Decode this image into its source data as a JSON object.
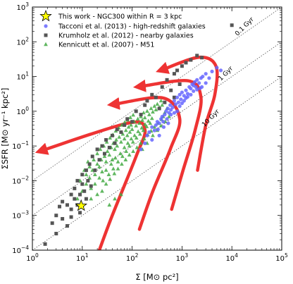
{
  "chart_data": {
    "type": "scatter",
    "x_scale": "log",
    "y_scale": "log",
    "xlim": [
      1,
      100000
    ],
    "ylim": [
      0.0001,
      1000
    ],
    "xlabel": "Σ [M⊙ pc²]",
    "ylabel": "ΣSFR [M⊙ yr⁻¹ kpc²]",
    "x_ticks": [
      {
        "value": 1,
        "base": "10",
        "exp": "0"
      },
      {
        "value": 10,
        "base": "10",
        "exp": "1"
      },
      {
        "value": 100,
        "base": "10",
        "exp": "2"
      },
      {
        "value": 1000,
        "base": "10",
        "exp": "3"
      },
      {
        "value": 10000,
        "base": "10",
        "exp": "4"
      },
      {
        "value": 100000,
        "base": "10",
        "exp": "5"
      }
    ],
    "y_ticks": [
      {
        "value": 0.0001,
        "base": "10",
        "exp": "−4"
      },
      {
        "value": 0.001,
        "base": "10",
        "exp": "−3"
      },
      {
        "value": 0.01,
        "base": "10",
        "exp": "−2"
      },
      {
        "value": 0.1,
        "base": "10",
        "exp": "−1"
      },
      {
        "value": 1,
        "base": "10",
        "exp": "0"
      },
      {
        "value": 10,
        "base": "10",
        "exp": "1"
      },
      {
        "value": 100,
        "base": "10",
        "exp": "2"
      },
      {
        "value": 1000,
        "base": "10",
        "exp": "3"
      }
    ],
    "legend": {
      "position": "upper-left",
      "entries": [
        {
          "label": "This work - NGC300 within R = 3 kpc",
          "marker": "star",
          "color": "#ffff00"
        },
        {
          "label": "Tacconi et al. (2013) - high-redshift galaxies",
          "marker": "circle",
          "color": "#6666ff"
        },
        {
          "label": "Krumholz et al. (2012) - nearby galaxies",
          "marker": "square",
          "color": "#555555"
        },
        {
          "label": "Kennicutt et al. (2007) - M51",
          "marker": "triangle",
          "color": "#44aa44"
        }
      ]
    },
    "reference_lines": [
      {
        "label": "0.1 Gyr",
        "depletion_time_gyr": 0.1
      },
      {
        "label": "1 Gyr",
        "depletion_time_gyr": 1
      },
      {
        "label": "10 Gyr",
        "depletion_time_gyr": 10
      }
    ],
    "arrows": [
      {
        "color": "#ee3333",
        "points": [
          [
            22,
            0.0001
          ],
          [
            40,
            0.001
          ],
          [
            120,
            0.05
          ],
          [
            180,
            0.3
          ],
          [
            80,
            0.45
          ],
          [
            1.6,
            0.075
          ]
        ]
      },
      {
        "color": "#ee3333",
        "points": [
          [
            140,
            0.0004
          ],
          [
            260,
            0.005
          ],
          [
            580,
            0.08
          ],
          [
            900,
            0.6
          ],
          [
            420,
            2.4
          ],
          [
            45,
            1.6
          ]
        ]
      },
      {
        "color": "#ee3333",
        "points": [
          [
            620,
            0.0015
          ],
          [
            1050,
            0.02
          ],
          [
            1850,
            0.3
          ],
          [
            2400,
            2.5
          ],
          [
            1350,
            7.5
          ],
          [
            150,
            5.2
          ]
        ]
      },
      {
        "color": "#ee3333",
        "points": [
          [
            2050,
            0.02
          ],
          [
            3000,
            0.4
          ],
          [
            4550,
            3
          ],
          [
            4800,
            20
          ],
          [
            2200,
            36
          ],
          [
            420,
            16
          ]
        ]
      }
    ],
    "series": [
      {
        "name": "This work - NGC300 within R = 3 kpc",
        "marker": "star",
        "color": "#ffff00",
        "points": [
          [
            9.5,
            0.0019
          ]
        ]
      },
      {
        "name": "Tacconi et al. (2013) - high-redshift galaxies",
        "marker": "circle",
        "color": "#6666ff",
        "points": [
          [
            150,
            0.08
          ],
          [
            180,
            0.12
          ],
          [
            200,
            0.2
          ],
          [
            220,
            0.25
          ],
          [
            250,
            0.35
          ],
          [
            280,
            0.28
          ],
          [
            300,
            0.4
          ],
          [
            320,
            0.5
          ],
          [
            350,
            0.45
          ],
          [
            380,
            0.6
          ],
          [
            400,
            0.7
          ],
          [
            420,
            0.5
          ],
          [
            450,
            0.8
          ],
          [
            480,
            1.0
          ],
          [
            500,
            0.6
          ],
          [
            520,
            1.2
          ],
          [
            550,
            0.9
          ],
          [
            580,
            1.5
          ],
          [
            600,
            1.1
          ],
          [
            650,
            1.3
          ],
          [
            700,
            2.0
          ],
          [
            750,
            1.6
          ],
          [
            800,
            2.5
          ],
          [
            850,
            1.8
          ],
          [
            900,
            3.0
          ],
          [
            950,
            2.2
          ],
          [
            1000,
            3.5
          ],
          [
            1100,
            2.8
          ],
          [
            1200,
            4.0
          ],
          [
            1300,
            3.2
          ],
          [
            1400,
            5.0
          ],
          [
            1500,
            4.5
          ],
          [
            1600,
            6.0
          ],
          [
            1700,
            5.5
          ],
          [
            1800,
            7.0
          ],
          [
            2000,
            8.0
          ],
          [
            2200,
            6.5
          ],
          [
            2400,
            9.0
          ],
          [
            2600,
            10.0
          ],
          [
            3000,
            12.0
          ],
          [
            3500,
            9.0
          ],
          [
            4000,
            14.0
          ],
          [
            5000,
            18.0
          ],
          [
            6000,
            15.0
          ],
          [
            800,
            1.0
          ],
          [
            900,
            1.4
          ],
          [
            1000,
            1.7
          ],
          [
            1100,
            2.0
          ],
          [
            1200,
            2.4
          ],
          [
            1300,
            2.6
          ],
          [
            1500,
            3.0
          ],
          [
            1700,
            3.8
          ],
          [
            2000,
            4.2
          ],
          [
            2500,
            5.0
          ],
          [
            3000,
            6.5
          ],
          [
            600,
            0.8
          ],
          [
            700,
            0.9
          ],
          [
            250,
            0.15
          ],
          [
            330,
            0.3
          ],
          [
            430,
            0.35
          ],
          [
            530,
            0.45
          ],
          [
            1900,
            5.0
          ],
          [
            2300,
            4.6
          ],
          [
            350,
            0.2
          ]
        ]
      },
      {
        "name": "Krumholz et al. (2012) - nearby galaxies",
        "marker": "square",
        "color": "#555555",
        "points": [
          [
            1.8,
            0.00015
          ],
          [
            3,
            0.0003
          ],
          [
            4,
            0.0008
          ],
          [
            5,
            0.0005
          ],
          [
            5,
            0.002
          ],
          [
            6,
            0.0015
          ],
          [
            6,
            0.004
          ],
          [
            7,
            0.003
          ],
          [
            7,
            0.006
          ],
          [
            8,
            0.002
          ],
          [
            8,
            0.01
          ],
          [
            9,
            0.004
          ],
          [
            10,
            0.008
          ],
          [
            10,
            0.015
          ],
          [
            11,
            0.005
          ],
          [
            12,
            0.02
          ],
          [
            13,
            0.01
          ],
          [
            14,
            0.03
          ],
          [
            15,
            0.007
          ],
          [
            16,
            0.05
          ],
          [
            18,
            0.02
          ],
          [
            20,
            0.08
          ],
          [
            22,
            0.04
          ],
          [
            25,
            0.1
          ],
          [
            28,
            0.06
          ],
          [
            30,
            0.15
          ],
          [
            35,
            0.09
          ],
          [
            40,
            0.2
          ],
          [
            45,
            0.12
          ],
          [
            50,
            0.3
          ],
          [
            60,
            0.25
          ],
          [
            70,
            0.4
          ],
          [
            80,
            0.6
          ],
          [
            100,
            0.5
          ],
          [
            120,
            1.0
          ],
          [
            150,
            0.8
          ],
          [
            180,
            1.5
          ],
          [
            200,
            2.0
          ],
          [
            250,
            3.0
          ],
          [
            300,
            2.5
          ],
          [
            400,
            5.0
          ],
          [
            500,
            8.0
          ],
          [
            700,
            12.0
          ],
          [
            1000,
            20.0
          ],
          [
            1500,
            30.0
          ],
          [
            2000,
            40.0
          ],
          [
            10000,
            300.0
          ],
          [
            1200,
            25.0
          ],
          [
            800,
            15.0
          ],
          [
            3,
            0.001
          ],
          [
            4,
            0.0025
          ],
          [
            6,
            0.0009
          ],
          [
            9,
            0.0012
          ],
          [
            12,
            0.003
          ],
          [
            2.5,
            0.0006
          ],
          [
            3.5,
            0.0018
          ],
          [
            600,
            4.0
          ],
          [
            350,
            1.2
          ],
          [
            450,
            1.8
          ],
          [
            700,
            2.5
          ],
          [
            900,
            6.0
          ],
          [
            2500,
            35.0
          ]
        ]
      },
      {
        "name": "Kennicutt et al. (2007) - M51",
        "marker": "triangle",
        "color": "#44aa44",
        "points": [
          [
            8,
            0.003
          ],
          [
            10,
            0.005
          ],
          [
            12,
            0.008
          ],
          [
            14,
            0.012
          ],
          [
            15,
            0.006
          ],
          [
            16,
            0.02
          ],
          [
            18,
            0.015
          ],
          [
            20,
            0.03
          ],
          [
            22,
            0.025
          ],
          [
            24,
            0.04
          ],
          [
            25,
            0.018
          ],
          [
            28,
            0.05
          ],
          [
            30,
            0.035
          ],
          [
            32,
            0.07
          ],
          [
            35,
            0.055
          ],
          [
            38,
            0.09
          ],
          [
            40,
            0.04
          ],
          [
            42,
            0.12
          ],
          [
            45,
            0.08
          ],
          [
            48,
            0.15
          ],
          [
            50,
            0.1
          ],
          [
            55,
            0.18
          ],
          [
            60,
            0.13
          ],
          [
            65,
            0.22
          ],
          [
            70,
            0.16
          ],
          [
            75,
            0.28
          ],
          [
            80,
            0.2
          ],
          [
            85,
            0.35
          ],
          [
            90,
            0.25
          ],
          [
            95,
            0.4
          ],
          [
            100,
            0.3
          ],
          [
            110,
            0.5
          ],
          [
            120,
            0.38
          ],
          [
            130,
            0.6
          ],
          [
            140,
            0.45
          ],
          [
            150,
            0.7
          ],
          [
            160,
            0.55
          ],
          [
            170,
            0.9
          ],
          [
            180,
            0.65
          ],
          [
            200,
            1.0
          ],
          [
            220,
            0.8
          ],
          [
            240,
            1.2
          ],
          [
            260,
            0.95
          ],
          [
            280,
            1.4
          ],
          [
            300,
            1.1
          ],
          [
            320,
            1.6
          ],
          [
            350,
            1.3
          ],
          [
            380,
            2.0
          ],
          [
            400,
            1.5
          ],
          [
            420,
            0.7
          ],
          [
            450,
            0.9
          ],
          [
            500,
            1.2
          ],
          [
            18,
            0.008
          ],
          [
            22,
            0.012
          ],
          [
            26,
            0.01
          ],
          [
            30,
            0.02
          ],
          [
            34,
            0.015
          ],
          [
            38,
            0.03
          ],
          [
            42,
            0.022
          ],
          [
            46,
            0.045
          ],
          [
            52,
            0.035
          ],
          [
            58,
            0.06
          ],
          [
            64,
            0.05
          ],
          [
            70,
            0.09
          ],
          [
            76,
            0.07
          ],
          [
            82,
            0.12
          ],
          [
            88,
            0.1
          ],
          [
            96,
            0.16
          ],
          [
            104,
            0.13
          ],
          [
            112,
            0.2
          ],
          [
            122,
            0.17
          ],
          [
            132,
            0.26
          ],
          [
            144,
            0.22
          ],
          [
            156,
            0.33
          ],
          [
            168,
            0.28
          ],
          [
            182,
            0.42
          ],
          [
            196,
            0.36
          ],
          [
            212,
            0.52
          ],
          [
            230,
            0.45
          ],
          [
            250,
            0.62
          ],
          [
            12,
            0.015
          ],
          [
            14,
            0.025
          ],
          [
            17,
            0.04
          ],
          [
            20,
            0.06
          ],
          [
            23,
            0.08
          ],
          [
            27,
            0.1
          ],
          [
            31,
            0.13
          ],
          [
            36,
            0.17
          ],
          [
            41,
            0.21
          ],
          [
            47,
            0.27
          ],
          [
            54,
            0.33
          ],
          [
            62,
            0.4
          ],
          [
            71,
            0.48
          ],
          [
            81,
            0.56
          ],
          [
            92,
            0.66
          ],
          [
            105,
            0.78
          ],
          [
            25,
            0.005
          ],
          [
            30,
            0.008
          ],
          [
            36,
            0.011
          ],
          [
            44,
            0.016
          ],
          [
            52,
            0.022
          ],
          [
            62,
            0.03
          ],
          [
            74,
            0.04
          ],
          [
            88,
            0.055
          ],
          [
            105,
            0.07
          ],
          [
            125,
            0.09
          ],
          [
            148,
            0.12
          ],
          [
            175,
            0.16
          ],
          [
            205,
            0.21
          ],
          [
            240,
            0.27
          ],
          [
            280,
            0.35
          ],
          [
            330,
            0.45
          ],
          [
            390,
            0.58
          ],
          [
            20,
            0.004
          ],
          [
            15,
            0.003
          ],
          [
            35,
            0.002
          ],
          [
            45,
            0.003
          ],
          [
            60,
            0.004
          ],
          [
            9,
            0.01
          ],
          [
            11,
            0.02
          ],
          [
            13,
            0.035
          ],
          [
            160,
            0.08
          ],
          [
            200,
            0.12
          ],
          [
            260,
            0.2
          ],
          [
            320,
            0.28
          ],
          [
            380,
            0.38
          ],
          [
            460,
            0.5
          ],
          [
            550,
            0.7
          ]
        ]
      }
    ]
  }
}
